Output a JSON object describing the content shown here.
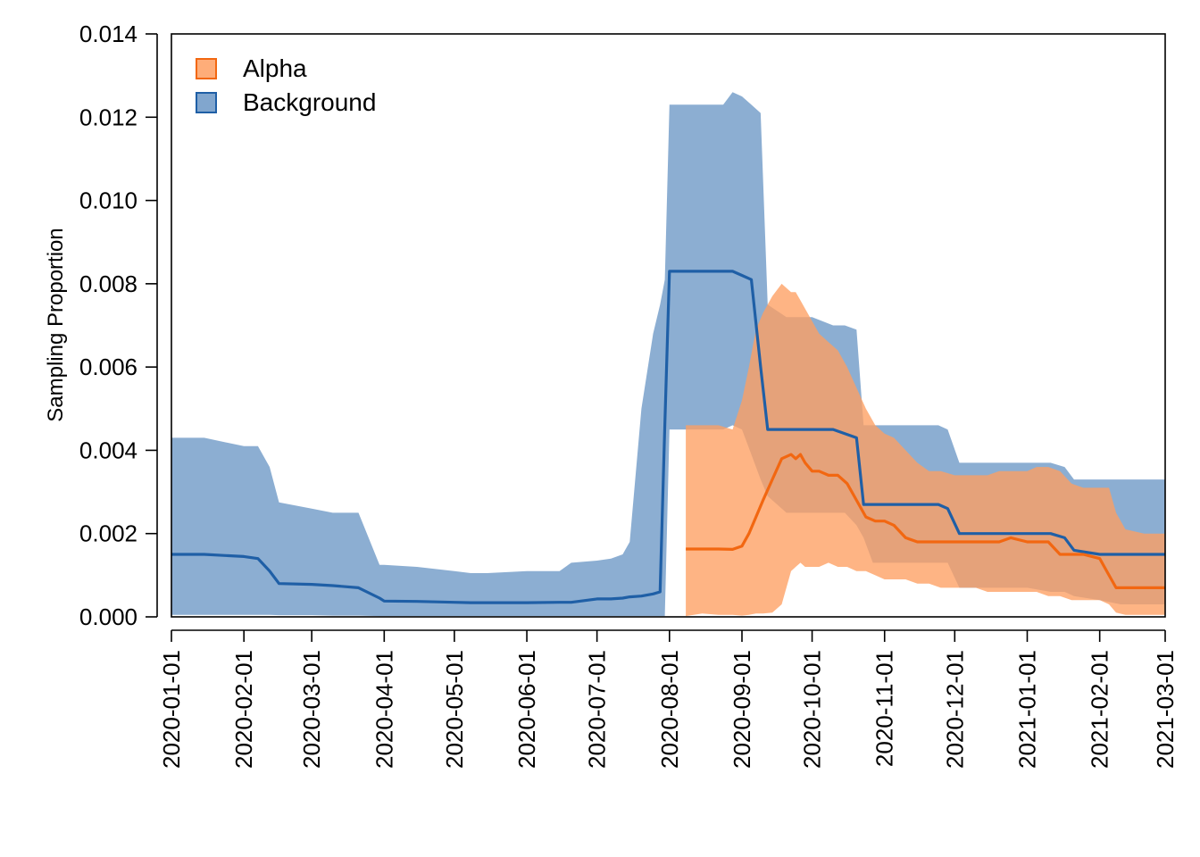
{
  "chart_data": {
    "type": "area",
    "title": "",
    "xlabel": "",
    "ylabel": "Sampling Proportion",
    "xlim": [
      "2020-01-01",
      "2021-03-01"
    ],
    "ylim": [
      0,
      0.014
    ],
    "y_ticks": [
      0,
      0.002,
      0.004,
      0.006,
      0.008,
      0.01,
      0.012,
      0.014
    ],
    "y_tick_labels": [
      "0.000",
      "0.002",
      "0.004",
      "0.006",
      "0.008",
      "0.010",
      "0.012",
      "0.014"
    ],
    "x_ticks": [
      "2020-01-01",
      "2020-02-01",
      "2020-03-01",
      "2020-04-01",
      "2020-05-01",
      "2020-06-01",
      "2020-07-01",
      "2020-08-01",
      "2020-09-01",
      "2020-10-01",
      "2020-11-01",
      "2020-12-01",
      "2021-01-01",
      "2021-02-01",
      "2021-03-01"
    ],
    "legend_position": "top-left",
    "grid": false,
    "series": [
      {
        "name": "Background",
        "fill_color": "#6b97c5",
        "fill_opacity": 0.78,
        "line_color": "#1f5fa6",
        "x": [
          "2020-01-01",
          "2020-01-15",
          "2020-02-01",
          "2020-02-07",
          "2020-02-12",
          "2020-02-16",
          "2020-03-01",
          "2020-03-10",
          "2020-03-21",
          "2020-03-30",
          "2020-04-01",
          "2020-04-15",
          "2020-05-01",
          "2020-05-08",
          "2020-05-15",
          "2020-06-01",
          "2020-06-15",
          "2020-06-20",
          "2020-07-01",
          "2020-07-07",
          "2020-07-12",
          "2020-07-15",
          "2020-07-20",
          "2020-07-25",
          "2020-07-28",
          "2020-07-30",
          "2020-08-01",
          "2020-08-10",
          "2020-08-20",
          "2020-08-24",
          "2020-08-28",
          "2020-09-01",
          "2020-09-05",
          "2020-09-09",
          "2020-09-12",
          "2020-09-20",
          "2020-10-01",
          "2020-10-10",
          "2020-10-15",
          "2020-10-20",
          "2020-10-23",
          "2020-10-27",
          "2020-11-01",
          "2020-11-15",
          "2020-11-24",
          "2020-11-28",
          "2020-12-03",
          "2020-12-15",
          "2021-01-01",
          "2021-01-11",
          "2021-01-17",
          "2021-01-21",
          "2021-02-01",
          "2021-02-10",
          "2021-02-15",
          "2021-03-01"
        ],
        "lower": [
          5e-05,
          5e-05,
          5e-05,
          5e-05,
          5e-05,
          4e-05,
          4e-05,
          3e-05,
          3e-05,
          2e-05,
          2e-05,
          2e-05,
          2e-05,
          2e-05,
          2e-05,
          2e-05,
          2e-05,
          2e-05,
          2e-05,
          2e-05,
          2e-05,
          2e-05,
          2e-05,
          2e-05,
          2e-05,
          2e-05,
          0.0045,
          0.0045,
          0.0045,
          0.0045,
          0.0046,
          0.0045,
          0.0039,
          0.0033,
          0.0029,
          0.0025,
          0.0025,
          0.0025,
          0.0025,
          0.0022,
          0.0019,
          0.0013,
          0.0013,
          0.0013,
          0.0013,
          0.0013,
          0.0007,
          0.0007,
          0.0007,
          0.0006,
          0.0006,
          0.0005,
          0.0004,
          0.0003,
          0.0003,
          0.0003
        ],
        "mean": [
          0.0015,
          0.0015,
          0.00145,
          0.0014,
          0.0011,
          0.0008,
          0.00078,
          0.00075,
          0.0007,
          0.00045,
          0.00038,
          0.00037,
          0.00035,
          0.00034,
          0.00034,
          0.00034,
          0.00035,
          0.00035,
          0.00043,
          0.00043,
          0.00045,
          0.00048,
          0.0005,
          0.00055,
          0.0006,
          0.0046,
          0.0083,
          0.0083,
          0.0083,
          0.0083,
          0.0083,
          0.0082,
          0.0081,
          0.006,
          0.0045,
          0.0045,
          0.0045,
          0.0045,
          0.0044,
          0.0043,
          0.0027,
          0.0027,
          0.0027,
          0.0027,
          0.0027,
          0.0026,
          0.002,
          0.002,
          0.002,
          0.002,
          0.0019,
          0.0016,
          0.0015,
          0.0015,
          0.0015,
          0.0015
        ],
        "upper": [
          0.0043,
          0.0043,
          0.0041,
          0.0041,
          0.0036,
          0.00275,
          0.0026,
          0.0025,
          0.0025,
          0.00125,
          0.00125,
          0.0012,
          0.0011,
          0.00105,
          0.00105,
          0.0011,
          0.0011,
          0.0013,
          0.00135,
          0.0014,
          0.0015,
          0.0018,
          0.005,
          0.0068,
          0.0075,
          0.0081,
          0.0123,
          0.0123,
          0.0123,
          0.0123,
          0.0126,
          0.0125,
          0.0123,
          0.0121,
          0.0075,
          0.0072,
          0.0072,
          0.007,
          0.007,
          0.0069,
          0.0046,
          0.0046,
          0.0046,
          0.0046,
          0.0046,
          0.0045,
          0.0037,
          0.0037,
          0.0037,
          0.0037,
          0.0036,
          0.0033,
          0.0033,
          0.0033,
          0.0033,
          0.0033
        ]
      },
      {
        "name": "Alpha",
        "fill_color": "#fe9f62",
        "fill_opacity": 0.78,
        "line_color": "#f26711",
        "x": [
          "2020-08-08",
          "2020-08-15",
          "2020-08-22",
          "2020-08-28",
          "2020-09-01",
          "2020-09-04",
          "2020-09-07",
          "2020-09-10",
          "2020-09-14",
          "2020-09-18",
          "2020-09-22",
          "2020-09-24",
          "2020-09-26",
          "2020-09-28",
          "2020-10-01",
          "2020-10-04",
          "2020-10-08",
          "2020-10-12",
          "2020-10-16",
          "2020-10-20",
          "2020-10-24",
          "2020-10-28",
          "2020-11-01",
          "2020-11-05",
          "2020-11-10",
          "2020-11-15",
          "2020-11-20",
          "2020-11-25",
          "2020-12-01",
          "2020-12-05",
          "2020-12-10",
          "2020-12-15",
          "2020-12-20",
          "2020-12-25",
          "2021-01-01",
          "2021-01-05",
          "2021-01-10",
          "2021-01-15",
          "2021-01-20",
          "2021-01-25",
          "2021-02-01",
          "2021-02-05",
          "2021-02-08",
          "2021-02-12",
          "2021-02-20",
          "2021-03-01"
        ],
        "lower": [
          2e-05,
          8e-05,
          5e-05,
          5e-05,
          3e-05,
          5e-05,
          8e-05,
          8e-05,
          0.0001,
          0.0003,
          0.0011,
          0.0012,
          0.0013,
          0.0012,
          0.0012,
          0.0012,
          0.0013,
          0.0012,
          0.0012,
          0.0011,
          0.0011,
          0.001,
          0.0009,
          0.0009,
          0.0009,
          0.0008,
          0.0008,
          0.0007,
          0.0007,
          0.0007,
          0.0007,
          0.0006,
          0.0006,
          0.0006,
          0.0006,
          0.0006,
          0.0005,
          0.0005,
          0.0004,
          0.0004,
          0.0004,
          0.0003,
          0.0001,
          5e-05,
          5e-05,
          5e-05
        ],
        "mean": [
          0.00163,
          0.00163,
          0.00163,
          0.00162,
          0.0017,
          0.002,
          0.0024,
          0.0028,
          0.0033,
          0.0038,
          0.0039,
          0.0038,
          0.0039,
          0.0037,
          0.0035,
          0.0035,
          0.0034,
          0.0034,
          0.0032,
          0.0028,
          0.0024,
          0.0023,
          0.0023,
          0.0022,
          0.0019,
          0.0018,
          0.0018,
          0.0018,
          0.0018,
          0.0018,
          0.0018,
          0.0018,
          0.0018,
          0.0019,
          0.0018,
          0.0018,
          0.0018,
          0.0015,
          0.0015,
          0.0015,
          0.0014,
          0.001,
          0.0007,
          0.0007,
          0.0007,
          0.0007
        ],
        "upper": [
          0.0046,
          0.0046,
          0.0046,
          0.0045,
          0.0052,
          0.006,
          0.0069,
          0.0073,
          0.0077,
          0.008,
          0.0078,
          0.0078,
          0.0076,
          0.0074,
          0.0071,
          0.0068,
          0.0066,
          0.0064,
          0.006,
          0.0055,
          0.005,
          0.0046,
          0.0044,
          0.0043,
          0.004,
          0.0037,
          0.0035,
          0.0035,
          0.0034,
          0.0034,
          0.0034,
          0.0034,
          0.0035,
          0.0035,
          0.0035,
          0.0036,
          0.0036,
          0.0035,
          0.0032,
          0.0031,
          0.0031,
          0.0031,
          0.0025,
          0.0021,
          0.002,
          0.002
        ]
      }
    ]
  }
}
